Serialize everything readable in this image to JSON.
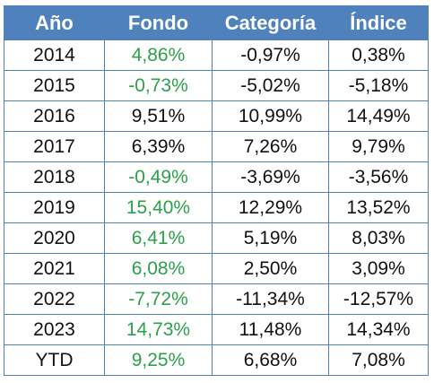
{
  "table": {
    "headers": [
      "Año",
      "Fondo",
      "Categoría",
      "Índice"
    ],
    "rows": [
      {
        "year": "2014",
        "fondo": "4,86%",
        "categoria": "-0,97%",
        "indice": "0,38%",
        "fondo_green": true
      },
      {
        "year": "2015",
        "fondo": "-0,73%",
        "categoria": "-5,02%",
        "indice": "-5,18%",
        "fondo_green": true
      },
      {
        "year": "2016",
        "fondo": "9,51%",
        "categoria": "10,99%",
        "indice": "14,49%",
        "fondo_green": false
      },
      {
        "year": "2017",
        "fondo": "6,39%",
        "categoria": "7,26%",
        "indice": "9,79%",
        "fondo_green": false
      },
      {
        "year": "2018",
        "fondo": "-0,49%",
        "categoria": "-3,69%",
        "indice": "-3,56%",
        "fondo_green": true
      },
      {
        "year": "2019",
        "fondo": "15,40%",
        "categoria": "12,29%",
        "indice": "13,52%",
        "fondo_green": true
      },
      {
        "year": "2020",
        "fondo": "6,41%",
        "categoria": "5,19%",
        "indice": "8,03%",
        "fondo_green": true
      },
      {
        "year": "2021",
        "fondo": "6,08%",
        "categoria": "2,50%",
        "indice": "3,09%",
        "fondo_green": true
      },
      {
        "year": "2022",
        "fondo": "-7,72%",
        "categoria": "-11,34%",
        "indice": "-12,57%",
        "fondo_green": true
      },
      {
        "year": "2023",
        "fondo": "14,73%",
        "categoria": "11,48%",
        "indice": "14,34%",
        "fondo_green": true
      },
      {
        "year": "YTD",
        "fondo": "9,25%",
        "categoria": "6,68%",
        "indice": "7,08%",
        "fondo_green": true
      }
    ]
  },
  "colors": {
    "header_bg": "#4f81bd",
    "header_text": "#ffffff",
    "highlight_green": "#2ca04b",
    "body_text": "#111111"
  }
}
